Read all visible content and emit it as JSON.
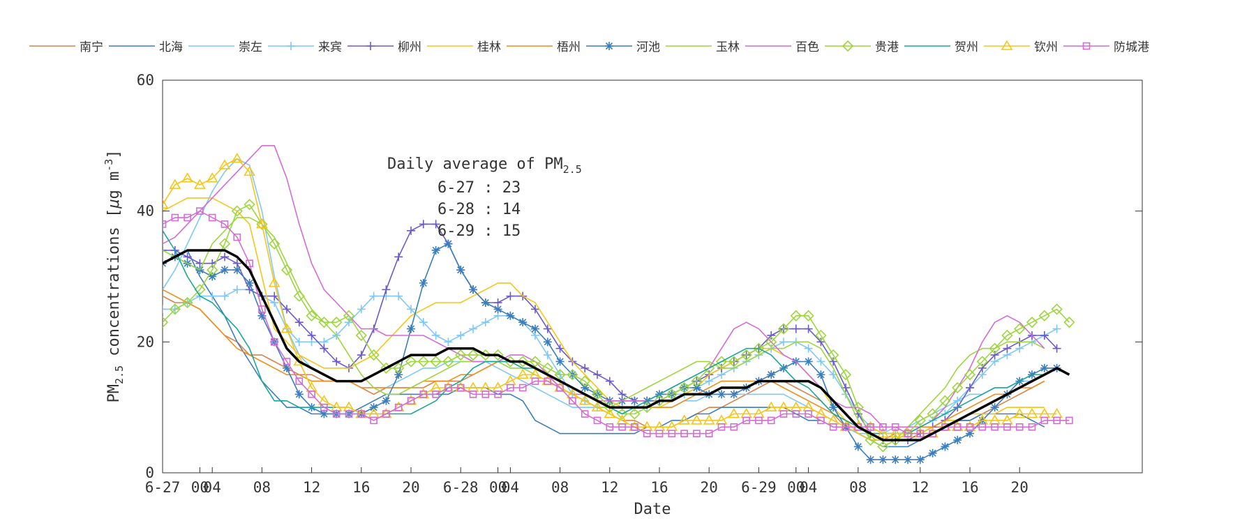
{
  "chart_data": {
    "type": "line",
    "xlabel": "Date",
    "ylabel": "PM2.5 concentrations [μg m⁻³]",
    "ylabel_parts": {
      "a": "PM",
      "a_sub": "2.5",
      "b": " concentrations [",
      "mu": "μ",
      "c": "g m",
      "c_sup": "-3",
      "d": "]"
    },
    "ylim": [
      0,
      60
    ],
    "xlim": [
      0,
      59
    ],
    "yticks": [
      0,
      20,
      40,
      60
    ],
    "xtick_positions": [
      0,
      4,
      8,
      12,
      16,
      20,
      24,
      28,
      32,
      36,
      40,
      44,
      48,
      52,
      56
    ],
    "xtick_labels": [
      "6-27",
      "04",
      "08",
      "12",
      "16",
      "20",
      "6-28",
      "04",
      "08",
      "12",
      "16",
      "20",
      "6-29",
      "04",
      "08"
    ],
    "xtick_positions_extra": [
      3,
      27,
      51
    ],
    "xtick_labels_extra": [
      "00",
      "00",
      "00"
    ],
    "xtick_positions_late": [
      61,
      65,
      69
    ],
    "xtick_labels_late": [
      "12",
      "16",
      "20"
    ],
    "annotation": {
      "title": "Daily average of PM",
      "title_sub": "2.5",
      "lines": [
        "6-27 : 23",
        "6-28 : 14",
        "6-29 : 15"
      ]
    },
    "legend_position": "top",
    "grid": false,
    "series": [
      {
        "name": "南宁",
        "color": "#d9824b",
        "marker": "none",
        "values": [
          27,
          26,
          26,
          25,
          23,
          21,
          20,
          18,
          18,
          17,
          16,
          15,
          15,
          14,
          14,
          14,
          13,
          12,
          13,
          13,
          13,
          13,
          14,
          14,
          14,
          15,
          16,
          17,
          17,
          17,
          16,
          15,
          13,
          12,
          11,
          10,
          9,
          8,
          8,
          7,
          7,
          7,
          8,
          9,
          10,
          10,
          11,
          12,
          13,
          14,
          14,
          13,
          12,
          11,
          9,
          7,
          6,
          5,
          5,
          6,
          6,
          6,
          7,
          7,
          8,
          8,
          9,
          10,
          11,
          12,
          13,
          14
        ]
      },
      {
        "name": "北海",
        "color": "#3a7ebd",
        "marker": "none",
        "values": [
          32,
          33,
          34,
          30,
          27,
          24,
          20,
          17,
          14,
          12,
          10,
          10,
          9,
          9,
          9,
          9,
          10,
          11,
          12,
          12,
          12,
          12,
          12,
          12,
          13,
          13,
          13,
          12,
          12,
          11,
          8,
          7,
          6,
          6,
          6,
          6,
          6,
          6,
          6,
          7,
          7,
          8,
          8,
          9,
          9,
          10,
          10,
          10,
          10,
          10,
          10,
          9,
          8,
          8,
          7,
          7,
          6,
          5,
          4,
          4,
          4,
          5,
          6,
          7,
          8,
          8,
          9,
          9,
          9,
          9,
          8,
          7
        ]
      },
      {
        "name": "崇左",
        "color": "#7fc8f5",
        "marker": "none",
        "values": [
          28,
          31,
          35,
          39,
          43,
          46,
          48,
          47,
          40,
          30,
          22,
          18,
          16,
          15,
          14,
          14,
          13,
          13,
          13,
          14,
          15,
          16,
          16,
          17,
          17,
          17,
          17,
          16,
          15,
          14,
          13,
          12,
          11,
          10,
          10,
          10,
          10,
          10,
          10,
          10,
          10,
          10,
          11,
          11,
          12,
          12,
          12,
          12,
          12,
          12,
          12,
          11,
          10,
          9,
          8,
          7,
          6,
          6,
          6,
          7,
          7,
          8,
          9,
          10,
          11,
          12,
          12,
          13,
          13,
          14,
          14,
          15
        ]
      },
      {
        "name": "来宾",
        "color": "#7fc8f5",
        "marker": "plus",
        "values": [
          25,
          25,
          26,
          27,
          27,
          27,
          28,
          28,
          27,
          26,
          22,
          20,
          20,
          20,
          21,
          23,
          25,
          27,
          27,
          27,
          25,
          23,
          21,
          20,
          21,
          22,
          23,
          24,
          24,
          23,
          21,
          18,
          15,
          12,
          11,
          10,
          10,
          10,
          10,
          10,
          11,
          12,
          12,
          13,
          14,
          15,
          16,
          17,
          18,
          19,
          20,
          20,
          19,
          17,
          15,
          12,
          9,
          7,
          6,
          6,
          6,
          7,
          8,
          9,
          11,
          13,
          15,
          17,
          18,
          19,
          20,
          21,
          22
        ]
      },
      {
        "name": "柳州",
        "color": "#6a5acd",
        "marker": "plus",
        "values": [
          34,
          34,
          33,
          32,
          32,
          33,
          32,
          28,
          27,
          27,
          25,
          23,
          21,
          19,
          17,
          16,
          18,
          22,
          28,
          33,
          37,
          38,
          38,
          35,
          31,
          28,
          26,
          26,
          27,
          27,
          25,
          22,
          19,
          17,
          16,
          15,
          14,
          12,
          11,
          11,
          11,
          12,
          13,
          14,
          15,
          16,
          17,
          18,
          19,
          21,
          22,
          22,
          22,
          20,
          17,
          13,
          9,
          6,
          5,
          5,
          5,
          6,
          7,
          8,
          10,
          13,
          16,
          18,
          19,
          20,
          21,
          21,
          19
        ]
      },
      {
        "name": "桂林",
        "color": "#f5c518",
        "marker": "none",
        "values": [
          40,
          41,
          42,
          42,
          42,
          41,
          40,
          38,
          30,
          22,
          20,
          18,
          17,
          16,
          16,
          16,
          17,
          18,
          20,
          22,
          24,
          25,
          26,
          26,
          26,
          27,
          28,
          29,
          29,
          27,
          26,
          23,
          20,
          17,
          15,
          13,
          11,
          10,
          10,
          10,
          10,
          11,
          12,
          13,
          15,
          16,
          17,
          18,
          19,
          19,
          18,
          17,
          15,
          13,
          10,
          8,
          6,
          5,
          5,
          5,
          6,
          6,
          7,
          8,
          8,
          9,
          9,
          9,
          10,
          10,
          10,
          10
        ]
      },
      {
        "name": "梧州",
        "color": "#f08c1a",
        "marker": "none",
        "values": [
          28,
          27,
          26,
          25,
          23,
          21,
          19,
          18,
          17,
          16,
          15,
          15,
          14,
          14,
          14,
          14,
          13,
          13,
          13,
          13,
          13,
          14,
          14,
          14,
          15,
          15,
          16,
          17,
          17,
          17,
          16,
          15,
          13,
          12,
          11,
          10,
          10,
          10,
          10,
          10,
          10,
          10,
          11,
          12,
          13,
          14,
          14,
          14,
          14,
          14,
          13,
          12,
          11,
          10,
          9,
          8,
          7,
          6,
          6,
          6,
          6,
          7,
          7,
          8,
          9,
          10,
          11,
          12,
          12,
          13,
          13,
          14
        ]
      },
      {
        "name": "河池",
        "color": "#3a7ebd",
        "marker": "asterisk",
        "values": [
          32,
          33,
          32,
          31,
          30,
          31,
          31,
          29,
          24,
          20,
          16,
          12,
          10,
          9,
          9,
          9,
          9,
          10,
          11,
          15,
          22,
          29,
          34,
          35,
          31,
          28,
          26,
          25,
          24,
          23,
          22,
          20,
          17,
          15,
          13,
          12,
          11,
          11,
          11,
          11,
          12,
          12,
          13,
          13,
          12,
          12,
          12,
          13,
          14,
          15,
          16,
          17,
          17,
          15,
          10,
          7,
          4,
          2,
          2,
          2,
          2,
          2,
          3,
          4,
          5,
          6,
          8,
          10,
          12,
          14,
          15,
          16,
          16
        ]
      },
      {
        "name": "玉林",
        "color": "#9cd63c",
        "marker": "none",
        "values": [
          34,
          33,
          32,
          31,
          35,
          37,
          39,
          39,
          38,
          36,
          32,
          28,
          25,
          23,
          21,
          18,
          15,
          13,
          12,
          12,
          13,
          14,
          15,
          16,
          17,
          17,
          17,
          17,
          16,
          16,
          15,
          14,
          13,
          12,
          11,
          10,
          10,
          11,
          12,
          13,
          14,
          15,
          16,
          17,
          17,
          16,
          16,
          17,
          18,
          19,
          19,
          20,
          20,
          19,
          16,
          12,
          8,
          5,
          4,
          5,
          7,
          9,
          11,
          13,
          16,
          18,
          19,
          19,
          20,
          20,
          20,
          19
        ]
      },
      {
        "name": "百色",
        "color": "#d46bd6",
        "marker": "none",
        "values": [
          35,
          36,
          38,
          40,
          42,
          44,
          46,
          48,
          50,
          50,
          45,
          38,
          32,
          28,
          26,
          24,
          22,
          22,
          21,
          21,
          21,
          21,
          20,
          19,
          18,
          17,
          17,
          17,
          18,
          18,
          17,
          15,
          13,
          12,
          12,
          11,
          11,
          11,
          11,
          11,
          12,
          13,
          14,
          15,
          16,
          19,
          22,
          23,
          22,
          20,
          18,
          17,
          15,
          13,
          11,
          10,
          10,
          9,
          7,
          7,
          7,
          7,
          8,
          10,
          13,
          16,
          20,
          23,
          24,
          23,
          21,
          19
        ]
      },
      {
        "name": "贵港",
        "color": "#9cd63c",
        "marker": "diamond",
        "values": [
          23,
          25,
          26,
          28,
          31,
          35,
          40,
          41,
          38,
          35,
          31,
          27,
          24,
          23,
          23,
          24,
          21,
          18,
          16,
          16,
          17,
          17,
          17,
          17,
          18,
          18,
          18,
          18,
          17,
          17,
          17,
          16,
          15,
          15,
          14,
          12,
          10,
          9,
          9,
          10,
          11,
          12,
          13,
          14,
          16,
          17,
          17,
          18,
          19,
          20,
          22,
          24,
          24,
          21,
          18,
          15,
          10,
          5,
          4,
          5,
          6,
          8,
          9,
          11,
          13,
          15,
          17,
          19,
          21,
          22,
          23,
          24,
          25,
          23
        ]
      },
      {
        "name": "贺州",
        "color": "#17a899",
        "marker": "none",
        "values": [
          37,
          34,
          30,
          27,
          26,
          24,
          22,
          19,
          14,
          11,
          11,
          10,
          10,
          10,
          10,
          10,
          9,
          9,
          9,
          9,
          9,
          10,
          11,
          13,
          14,
          16,
          17,
          17,
          17,
          16,
          16,
          15,
          14,
          13,
          12,
          11,
          10,
          9,
          10,
          11,
          12,
          13,
          14,
          15,
          16,
          17,
          18,
          19,
          19,
          18,
          16,
          14,
          13,
          11,
          9,
          8,
          7,
          6,
          6,
          6,
          6,
          7,
          8,
          9,
          10,
          11,
          12,
          13,
          13,
          14,
          15,
          15
        ]
      },
      {
        "name": "钦州",
        "color": "#f5c518",
        "marker": "triangle",
        "values": [
          41,
          44,
          45,
          44,
          45,
          47,
          48,
          46,
          38,
          29,
          22,
          17,
          13,
          11,
          10,
          10,
          9,
          9,
          9,
          10,
          11,
          12,
          13,
          13,
          13,
          13,
          13,
          13,
          14,
          15,
          15,
          14,
          13,
          12,
          11,
          10,
          9,
          8,
          7,
          7,
          7,
          7,
          8,
          8,
          8,
          8,
          9,
          9,
          9,
          10,
          10,
          10,
          10,
          9,
          8,
          7,
          7,
          7,
          6,
          6,
          6,
          6,
          6,
          7,
          7,
          7,
          8,
          8,
          8,
          9,
          9,
          9,
          9
        ]
      },
      {
        "name": "防城港",
        "color": "#d46bd6",
        "marker": "square",
        "values": [
          38,
          39,
          39,
          40,
          39,
          38,
          36,
          32,
          25,
          20,
          17,
          14,
          12,
          10,
          9,
          9,
          9,
          8,
          9,
          10,
          11,
          12,
          12,
          13,
          13,
          12,
          12,
          12,
          13,
          13,
          14,
          14,
          13,
          11,
          9,
          8,
          7,
          7,
          7,
          6,
          6,
          6,
          6,
          6,
          6,
          7,
          7,
          8,
          8,
          8,
          9,
          9,
          9,
          8,
          7,
          7,
          7,
          7,
          7,
          7,
          6,
          6,
          6,
          7,
          7,
          7,
          7,
          7,
          7,
          7,
          7,
          8,
          8,
          8
        ]
      },
      {
        "name": "",
        "color": "#000000",
        "marker": "none",
        "width": 3.5,
        "values": [
          32,
          33,
          34,
          34,
          34,
          34,
          33,
          31,
          27,
          23,
          19,
          17,
          16,
          15,
          14,
          14,
          14,
          15,
          16,
          17,
          18,
          18,
          18,
          19,
          19,
          19,
          18,
          18,
          17,
          17,
          16,
          15,
          14,
          13,
          12,
          11,
          10,
          10,
          10,
          10,
          11,
          11,
          12,
          12,
          12,
          13,
          13,
          13,
          14,
          14,
          14,
          14,
          14,
          13,
          11,
          9,
          7,
          6,
          5,
          5,
          5,
          5,
          6,
          7,
          8,
          9,
          10,
          11,
          12,
          13,
          14,
          15,
          16,
          15
        ]
      }
    ]
  },
  "colors": {
    "axis": "#333333",
    "text": "#333333"
  }
}
